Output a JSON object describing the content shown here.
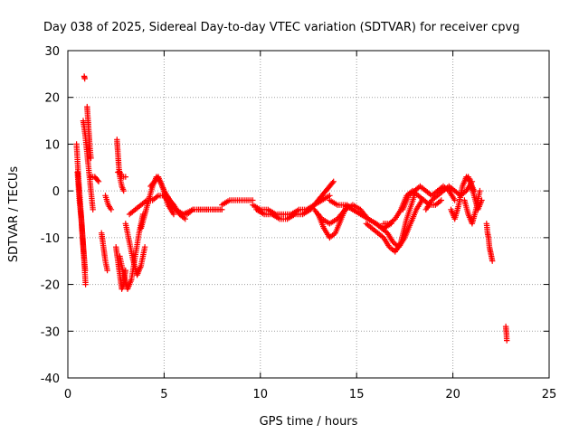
{
  "chart_data": {
    "type": "scatter",
    "title": "Day 038 of 2025, Sidereal Day-to-day VTEC variation (SDTVAR) for receiver cpvg",
    "xlabel": "GPS time / hours",
    "ylabel": "SDTVAR / TECUs",
    "xlim": [
      0,
      25
    ],
    "ylim": [
      -40,
      30
    ],
    "xticks": [
      0,
      5,
      10,
      15,
      20,
      25
    ],
    "xtick_labels": [
      "0",
      "5",
      "10",
      "15",
      "20",
      "25"
    ],
    "yticks": [
      -40,
      -30,
      -20,
      -10,
      0,
      10,
      20,
      30
    ],
    "ytick_labels": [
      "-40",
      "-30",
      "-20",
      "-10",
      "0",
      "10",
      "20",
      "30"
    ],
    "grid": true,
    "marker": "plus",
    "color": "#ff0000",
    "series": [
      {
        "name": "SDTVAR",
        "segments": [
          {
            "x": [
              0.45,
              0.55,
              0.65,
              0.75,
              0.85,
              0.92
            ],
            "y": [
              10,
              3,
              -3,
              -9,
              -15,
              -20
            ]
          },
          {
            "x": [
              0.5,
              0.6,
              0.7,
              0.8,
              0.9
            ],
            "y": [
              4,
              -2,
              -6,
              -12,
              -17
            ]
          },
          {
            "x": [
              0.8,
              0.9,
              1.0,
              1.1,
              1.2,
              1.3
            ],
            "y": [
              15,
              12,
              8,
              4,
              0,
              -4
            ]
          },
          {
            "x": [
              1.0,
              1.05,
              1.1,
              1.15,
              1.2
            ],
            "y": [
              18,
              15,
              12,
              9,
              7
            ]
          },
          {
            "x": [
              0.85,
              0.88
            ],
            "y": [
              24.5,
              24
            ]
          },
          {
            "x": [
              1.2,
              1.4,
              1.6
            ],
            "y": [
              3,
              3,
              2
            ]
          },
          {
            "x": [
              1.75,
              1.85,
              1.95,
              2.05
            ],
            "y": [
              -9,
              -12,
              -15,
              -17
            ]
          },
          {
            "x": [
              1.95,
              2.1,
              2.25
            ],
            "y": [
              -1,
              -3,
              -4
            ]
          },
          {
            "x": [
              2.55,
              2.6,
              2.65,
              2.7,
              2.8,
              2.9
            ],
            "y": [
              11,
              8,
              5,
              3,
              1,
              0
            ]
          },
          {
            "x": [
              2.6,
              2.7,
              2.8,
              3.0
            ],
            "y": [
              4,
              4,
              3,
              3
            ]
          },
          {
            "x": [
              2.5,
              2.6,
              2.7,
              2.8,
              2.9,
              3.0
            ],
            "y": [
              -12,
              -15,
              -18,
              -21,
              -20,
              -17
            ]
          },
          {
            "x": [
              2.7,
              2.9,
              3.1,
              3.3,
              3.5,
              3.7,
              3.9
            ],
            "y": [
              -14,
              -18,
              -21,
              -19,
              -14,
              -9,
              -5
            ]
          },
          {
            "x": [
              3.0,
              3.2,
              3.4,
              3.6,
              3.8,
              4.0
            ],
            "y": [
              -7,
              -11,
              -15,
              -18,
              -16,
              -12
            ]
          },
          {
            "x": [
              3.2,
              3.5,
              3.8,
              4.1,
              4.4,
              4.7,
              5.0,
              5.3,
              5.6,
              6.0,
              6.5,
              7.0,
              7.5,
              8.0
            ],
            "y": [
              -5,
              -4,
              -3,
              -2,
              -2,
              -1,
              -1,
              -3,
              -4,
              -5,
              -4,
              -4,
              -4,
              -4
            ]
          },
          {
            "x": [
              3.8,
              4.0,
              4.2,
              4.4,
              4.6,
              4.8,
              5.0,
              5.2,
              5.5
            ],
            "y": [
              -8,
              -5,
              -2,
              1,
              3,
              2,
              0,
              -3,
              -5
            ]
          },
          {
            "x": [
              4.3,
              4.5,
              4.7,
              4.9,
              5.1,
              5.3,
              5.5,
              5.8,
              6.1
            ],
            "y": [
              1,
              2,
              3,
              1,
              -1,
              -2,
              -3,
              -5,
              -6
            ]
          },
          {
            "x": [
              5.0,
              5.3,
              5.6,
              5.9,
              6.2,
              6.5,
              6.8,
              7.2,
              7.6,
              8.0
            ],
            "y": [
              0,
              -2,
              -4,
              -5,
              -5,
              -4,
              -4,
              -4,
              -4,
              -4
            ]
          },
          {
            "x": [
              8.0,
              8.4,
              8.8,
              9.2,
              9.6
            ],
            "y": [
              -3,
              -2,
              -2,
              -2,
              -2
            ]
          },
          {
            "x": [
              9.6,
              10.0,
              10.4,
              10.8,
              11.2,
              11.6,
              12.0,
              12.4,
              12.8,
              13.2,
              13.6
            ],
            "y": [
              -3,
              -4,
              -4,
              -5,
              -5,
              -5,
              -4,
              -4,
              -3,
              -2,
              -1
            ]
          },
          {
            "x": [
              9.8,
              10.2,
              10.6,
              11.0,
              11.4,
              11.8,
              12.2,
              12.6
            ],
            "y": [
              -4,
              -5,
              -5,
              -6,
              -6,
              -5,
              -5,
              -4
            ]
          },
          {
            "x": [
              12.6,
              12.8,
              13.0,
              13.2,
              13.4,
              13.6,
              13.8
            ],
            "y": [
              -4,
              -3,
              -2,
              -1,
              0,
              1,
              2
            ]
          },
          {
            "x": [
              13.0,
              13.3,
              13.6,
              13.9,
              14.2,
              14.5,
              14.8
            ],
            "y": [
              -5,
              -8,
              -10,
              -9,
              -6,
              -3,
              -4
            ]
          },
          {
            "x": [
              12.8,
              13.2,
              13.6,
              14.0,
              14.4,
              14.8,
              15.2,
              15.6,
              16.0
            ],
            "y": [
              -4,
              -6,
              -7,
              -6,
              -4,
              -3,
              -4,
              -6,
              -7
            ]
          },
          {
            "x": [
              13.6,
              14.0,
              14.4,
              14.8,
              15.2,
              15.6,
              16.0,
              16.4,
              16.8
            ],
            "y": [
              -2,
              -3,
              -3,
              -4,
              -5,
              -6,
              -7,
              -8,
              -7
            ]
          },
          {
            "x": [
              15.5,
              15.8,
              16.1,
              16.4,
              16.7,
              17.0,
              17.3,
              17.6,
              18.0
            ],
            "y": [
              -7,
              -8,
              -9,
              -10,
              -12,
              -13,
              -11,
              -6,
              -1
            ]
          },
          {
            "x": [
              16.0,
              16.3,
              16.6,
              16.9,
              17.2,
              17.5,
              17.8,
              18.1,
              18.4
            ],
            "y": [
              -7,
              -8,
              -9,
              -11,
              -12,
              -10,
              -7,
              -4,
              -2
            ]
          },
          {
            "x": [
              16.4,
              16.7,
              17.0,
              17.3,
              17.6,
              17.9,
              18.2,
              18.5,
              18.8,
              19.1,
              19.4
            ],
            "y": [
              -7,
              -7,
              -6,
              -4,
              -1,
              0,
              -1,
              -2,
              -3,
              -3,
              -2
            ]
          },
          {
            "x": [
              17.4,
              17.7,
              18.0,
              18.3,
              18.6,
              18.9,
              19.2,
              19.5,
              19.8,
              20.1
            ],
            "y": [
              -4,
              -1,
              0,
              1,
              0,
              -1,
              0,
              1,
              0,
              -2
            ]
          },
          {
            "x": [
              18.6,
              18.9,
              19.2,
              19.5,
              19.8,
              20.1,
              20.4,
              20.7,
              21.0
            ],
            "y": [
              -4,
              -2,
              -1,
              0,
              1,
              0,
              -1,
              0,
              2
            ]
          },
          {
            "x": [
              19.9,
              20.1,
              20.3,
              20.5,
              20.7,
              20.9,
              21.1,
              21.3,
              21.5
            ],
            "y": [
              -4,
              -6,
              -3,
              1,
              3,
              2,
              -1,
              -4,
              -2
            ]
          },
          {
            "x": [
              20.6,
              20.8,
              21.0,
              21.2,
              21.4
            ],
            "y": [
              -2,
              -5,
              -7,
              -4,
              0
            ]
          },
          {
            "x": [
              20.8,
              20.9,
              21.0,
              21.1
            ],
            "y": [
              3,
              2,
              1,
              0
            ]
          },
          {
            "x": [
              21.75,
              21.8,
              21.85,
              21.9,
              21.95,
              22.0,
              22.05
            ],
            "y": [
              -7,
              -9,
              -10,
              -12,
              -13,
              -14,
              -15
            ]
          },
          {
            "x": [
              22.75,
              22.78,
              22.8
            ],
            "y": [
              -29,
              -30.5,
              -32
            ]
          }
        ]
      }
    ]
  }
}
